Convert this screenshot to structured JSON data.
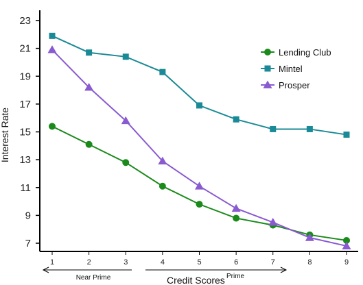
{
  "chart_data": {
    "type": "line",
    "x": [
      1,
      2,
      3,
      4,
      5,
      6,
      7,
      8,
      9
    ],
    "series": [
      {
        "name": "Lending Club",
        "color": "#1a8a1a",
        "marker": "circle",
        "values": [
          15.4,
          14.1,
          12.8,
          11.1,
          9.8,
          8.8,
          8.3,
          7.6,
          7.2
        ]
      },
      {
        "name": "Mintel",
        "color": "#1a8a96",
        "marker": "square",
        "values": [
          21.9,
          20.7,
          20.4,
          19.3,
          16.9,
          15.9,
          15.2,
          15.2,
          14.8
        ]
      },
      {
        "name": "Prosper",
        "color": "#8a5ad0",
        "marker": "triangle",
        "values": [
          20.9,
          18.2,
          15.8,
          12.9,
          11.1,
          9.5,
          8.5,
          7.4,
          6.8
        ]
      }
    ],
    "xlabel": "Credit Scores",
    "ylabel": "Interest Rate",
    "xlim": [
      1,
      9
    ],
    "ylim": [
      6,
      24
    ],
    "yticks": [
      7,
      9,
      11,
      13,
      15,
      17,
      19,
      21,
      23
    ],
    "xticks": [
      1,
      2,
      3,
      4,
      5,
      6,
      7,
      8,
      9
    ],
    "grid": false,
    "legend_position": "top-right",
    "annotations": {
      "near_prime": "Near Prime",
      "prime": "Prime"
    }
  }
}
